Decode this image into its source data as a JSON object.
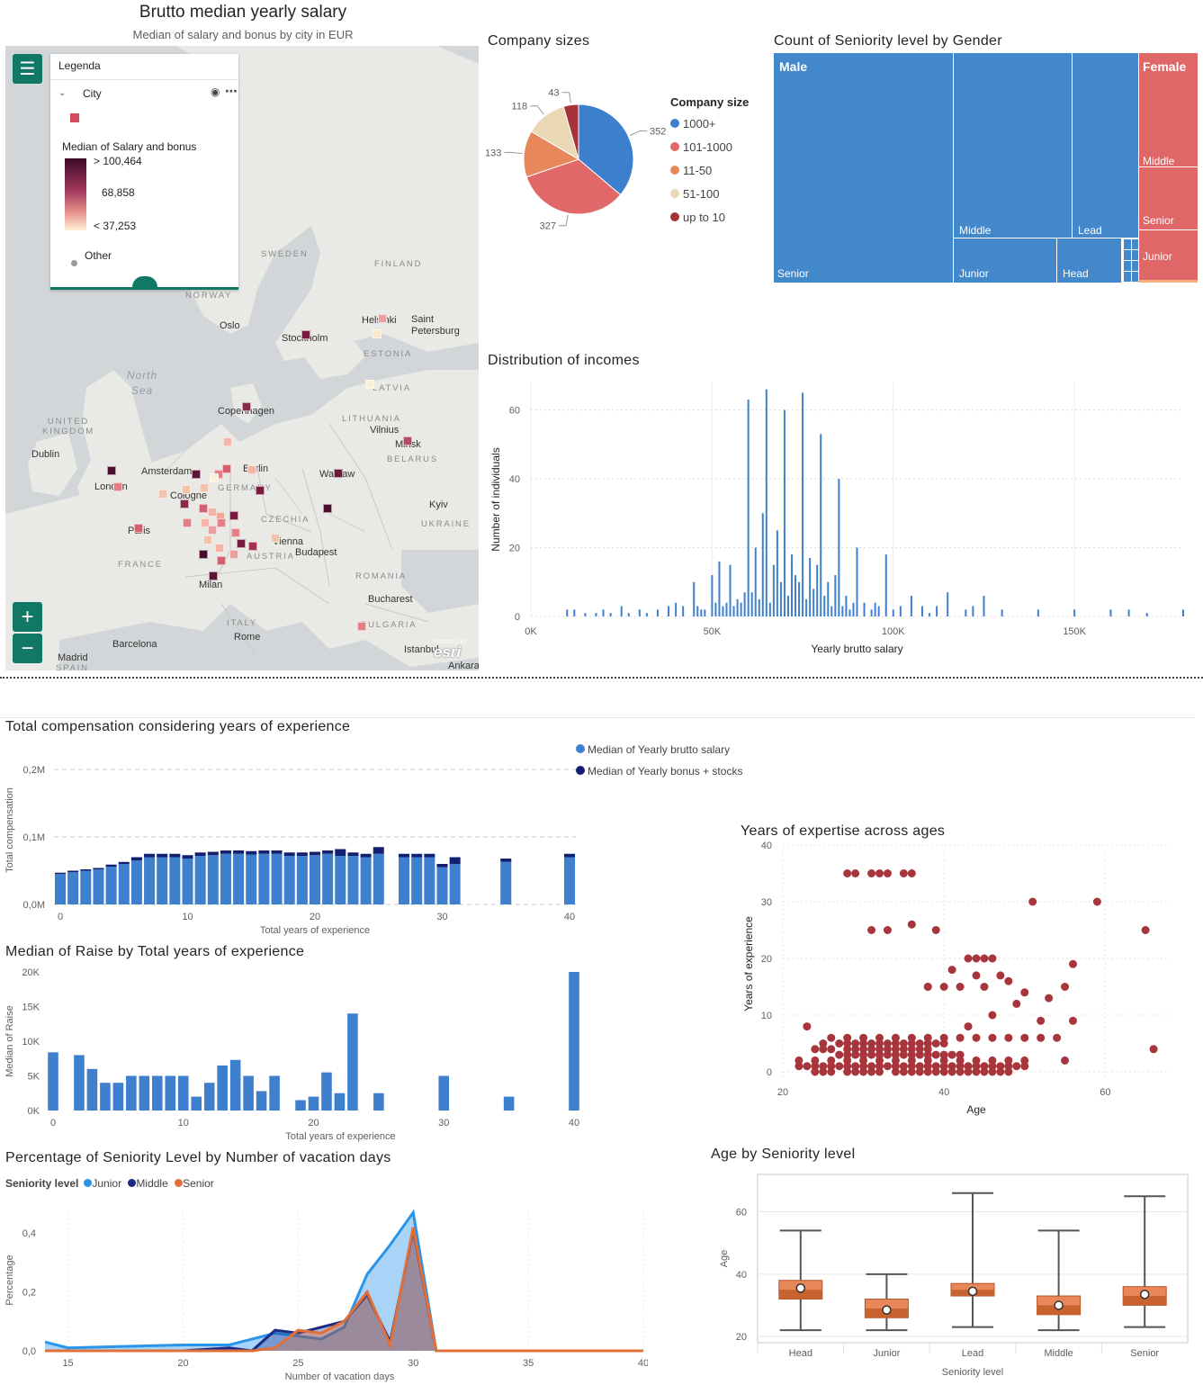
{
  "map_panel": {
    "title": "Brutto median yearly salary",
    "subtitle": "Median of salary and bonus by city in EUR",
    "legend_title": "Legenda",
    "layer_name": "City",
    "measure_label": "Median of Salary and bonus",
    "scale_max": "> 100,464",
    "scale_mid": "68,858",
    "scale_min": "< 37,253",
    "other_label": "Other",
    "attribution": "esri",
    "powered": "POWERED BY",
    "cities": [
      "Oslo",
      "Stockholm",
      "Helsinki",
      "Saint Petersburg",
      "Copenhagen",
      "Vilnius",
      "Minsk",
      "Dublin",
      "Amsterdam",
      "Berlin",
      "Warsaw",
      "London",
      "Cologne",
      "Kyiv",
      "Paris",
      "Vienna",
      "Budapest",
      "Milan",
      "Bucharest",
      "Rome",
      "Barcelona",
      "Madrid",
      "Istanbul",
      "Ankara"
    ],
    "countries": [
      "SWEDEN",
      "FINLAND",
      "NORWAY",
      "ESTONIA",
      "LATVIA",
      "LITHUANIA",
      "BELARUS",
      "UNITED KINGDOM",
      "GERMANY",
      "CZECHIA",
      "UKRAINE",
      "FRANCE",
      "AUSTRIA",
      "ROMANIA",
      "ITALY",
      "BULGARIA",
      "SPAIN"
    ],
    "seas": [
      "North Sea"
    ],
    "colors": {
      "high": "#4a0f2e",
      "mid": "#b9546a",
      "low": "#fbe8c8",
      "accent": "#117865"
    }
  },
  "pie": {
    "title": "Company sizes",
    "legend_title": "Company size",
    "chart_data": {
      "type": "pie",
      "labels": [
        "1000+",
        "101-1000",
        "11-50",
        "51-100",
        "up to 10"
      ],
      "values": [
        352,
        327,
        133,
        118,
        43
      ],
      "colors": [
        "#3c7fcd",
        "#e06868",
        "#e8875a",
        "#ead7b4",
        "#a8323a"
      ]
    }
  },
  "treemap": {
    "title": "Count of Seniority level by Gender",
    "male": "Male",
    "female": "Female",
    "male_cells": [
      "Senior",
      "Middle",
      "Lead",
      "Junior",
      "Head"
    ],
    "female_cells": [
      "Middle",
      "Senior",
      "Junior"
    ]
  },
  "hist": {
    "title": "Distribution of incomes",
    "chart_data": {
      "type": "bar",
      "xlabel": "Yearly brutto salary",
      "ylabel": "Number of individuals",
      "xlim": [
        0,
        180000
      ],
      "ylim": [
        0,
        68
      ],
      "x_ticks": [
        "0K",
        "50K",
        "100K",
        "150K"
      ],
      "y_ticks": [
        "0",
        "20",
        "40",
        "60"
      ],
      "x": [
        10000,
        12000,
        15000,
        18000,
        20000,
        22000,
        25000,
        27000,
        30000,
        32000,
        35000,
        38000,
        40000,
        42000,
        45000,
        46000,
        47000,
        48000,
        50000,
        51000,
        52000,
        53000,
        54000,
        55000,
        56000,
        57000,
        58000,
        59000,
        60000,
        61000,
        62000,
        63000,
        64000,
        65000,
        66000,
        67000,
        68000,
        69000,
        70000,
        71000,
        72000,
        73000,
        74000,
        75000,
        76000,
        77000,
        78000,
        79000,
        80000,
        81000,
        82000,
        83000,
        84000,
        85000,
        86000,
        87000,
        88000,
        89000,
        90000,
        92000,
        94000,
        95000,
        96000,
        98000,
        100000,
        102000,
        105000,
        108000,
        110000,
        112000,
        115000,
        120000,
        122000,
        125000,
        130000,
        140000,
        150000,
        160000,
        165000,
        170000,
        180000
      ],
      "values": [
        2,
        2,
        1,
        1,
        2,
        1,
        3,
        1,
        2,
        1,
        2,
        3,
        4,
        3,
        10,
        3,
        2,
        2,
        12,
        4,
        16,
        3,
        4,
        15,
        3,
        5,
        4,
        7,
        63,
        7,
        20,
        5,
        30,
        66,
        4,
        15,
        25,
        10,
        60,
        6,
        18,
        12,
        10,
        65,
        5,
        17,
        8,
        15,
        53,
        6,
        10,
        3,
        12,
        40,
        3,
        6,
        2,
        4,
        20,
        4,
        2,
        4,
        3,
        18,
        2,
        3,
        6,
        3,
        1,
        3,
        7,
        2,
        3,
        6,
        2,
        2,
        2,
        2,
        2,
        1,
        2
      ]
    }
  },
  "comp": {
    "title": "Total compensation considering years of experience",
    "chart_data": {
      "type": "bar",
      "stacked": true,
      "xlabel": "Total years of experience",
      "ylabel": "Total compensation",
      "ylim": [
        0,
        220000
      ],
      "x_ticks": [
        "0",
        "10",
        "20",
        "30",
        "40"
      ],
      "y_ticks": [
        "0,0M",
        "0,1M",
        "0,2M"
      ],
      "x": [
        0,
        1,
        2,
        3,
        4,
        5,
        6,
        7,
        8,
        9,
        10,
        11,
        12,
        13,
        14,
        15,
        16,
        17,
        18,
        19,
        20,
        21,
        22,
        23,
        24,
        25,
        27,
        28,
        29,
        30,
        31,
        35,
        40
      ],
      "series": [
        {
          "name": "Median of Yearly brutto salary",
          "color": "#3e7fce",
          "values": [
            45000,
            48000,
            50000,
            52000,
            56000,
            60000,
            65000,
            70000,
            70000,
            70000,
            68000,
            72000,
            73000,
            75000,
            75000,
            74000,
            75000,
            75000,
            72000,
            72000,
            73000,
            75000,
            72000,
            72000,
            70000,
            75000,
            70000,
            70000,
            70000,
            55000,
            60000,
            63000,
            70000
          ]
        },
        {
          "name": "Median of Yearly bonus + stocks",
          "color": "#13206f",
          "values": [
            2000,
            2000,
            2000,
            2000,
            3000,
            3000,
            5000,
            5000,
            5000,
            5000,
            5000,
            5000,
            5000,
            5000,
            5000,
            5000,
            5000,
            5000,
            5000,
            5000,
            5000,
            5000,
            10000,
            5000,
            5000,
            10000,
            5000,
            5000,
            5000,
            5000,
            10000,
            5000,
            5000
          ]
        }
      ]
    }
  },
  "raise": {
    "title": "Median of Raise by Total years of experience",
    "chart_data": {
      "type": "bar",
      "xlabel": "Total years of experience",
      "ylabel": "Median of Raise",
      "ylim": [
        0,
        20000
      ],
      "x_ticks": [
        "0",
        "10",
        "20",
        "30",
        "40"
      ],
      "y_ticks": [
        "0K",
        "5K",
        "10K",
        "15K",
        "20K"
      ],
      "x": [
        0,
        2,
        3,
        4,
        5,
        6,
        7,
        8,
        9,
        10,
        11,
        12,
        13,
        14,
        15,
        16,
        17,
        19,
        20,
        21,
        22,
        23,
        25,
        30,
        35,
        40
      ],
      "values": [
        8400,
        8000,
        6000,
        4000,
        4000,
        5000,
        5000,
        5000,
        5000,
        5000,
        2000,
        4000,
        6500,
        7300,
        5000,
        2800,
        5000,
        1500,
        2000,
        5500,
        2500,
        14000,
        2500,
        5000,
        2000,
        20000
      ]
    }
  },
  "vacation": {
    "title": "Percentage of Seniority Level by Number of vacation days",
    "legend_title": "Seniority level",
    "chart_data": {
      "type": "area",
      "xlabel": "Number of vacation days",
      "ylabel": "Percentage",
      "xlim": [
        14,
        40
      ],
      "ylim": [
        0,
        0.48
      ],
      "x_ticks": [
        "15",
        "20",
        "25",
        "30",
        "35",
        "40"
      ],
      "y_ticks": [
        "0,0",
        "0,2",
        "0,4"
      ],
      "x": [
        14,
        15,
        20,
        22,
        23,
        24,
        25,
        26,
        27,
        28,
        29,
        30,
        31,
        32,
        40
      ],
      "series": [
        {
          "name": "Junior",
          "color": "#2894ea",
          "values": [
            0.03,
            0.01,
            0.02,
            0.02,
            0.04,
            0.06,
            0.05,
            0.04,
            0.08,
            0.26,
            0.36,
            0.47,
            0.0,
            0.0,
            0.0
          ]
        },
        {
          "name": "Middle",
          "color": "#1b2a85",
          "values": [
            0.0,
            0.0,
            0.0,
            0.01,
            0.0,
            0.07,
            0.06,
            0.08,
            0.1,
            0.19,
            0.03,
            0.41,
            0.0,
            0.0,
            0.0
          ]
        },
        {
          "name": "Senior",
          "color": "#e0703a",
          "values": [
            0.0,
            0.0,
            0.0,
            0.0,
            0.0,
            0.01,
            0.07,
            0.06,
            0.1,
            0.2,
            0.02,
            0.42,
            0.0,
            0.0,
            0.0
          ]
        }
      ]
    }
  },
  "scatter": {
    "title": "Years of expertise across ages",
    "chart_data": {
      "type": "scatter",
      "xlabel": "Age",
      "ylabel": "Years of experience",
      "xlim": [
        20,
        68
      ],
      "ylim": [
        0,
        40
      ],
      "x_ticks": [
        "20",
        "40",
        "60"
      ],
      "y_ticks": [
        "0",
        "10",
        "20",
        "30",
        "40"
      ],
      "color": "#a8343c",
      "x": [
        24,
        25,
        26,
        28,
        29,
        30,
        31,
        32,
        34,
        35,
        36,
        37,
        38,
        39,
        40,
        41,
        42,
        43,
        44,
        45,
        46,
        47,
        48,
        22,
        23,
        24,
        25,
        26,
        27,
        28,
        29,
        30,
        31,
        32,
        33,
        34,
        35,
        36,
        37,
        38,
        39,
        40,
        41,
        42,
        43,
        44,
        45,
        46,
        47,
        48,
        49,
        50,
        22,
        24,
        26,
        28,
        30,
        32,
        34,
        36,
        38,
        40,
        42,
        44,
        46,
        48,
        50,
        27,
        28,
        29,
        30,
        31,
        32,
        33,
        34,
        35,
        36,
        37,
        38,
        39,
        40,
        41,
        42,
        24,
        25,
        26,
        28,
        29,
        30,
        31,
        32,
        33,
        34,
        35,
        36,
        37,
        38,
        25,
        27,
        28,
        29,
        30,
        31,
        32,
        33,
        34,
        35,
        36,
        37,
        38,
        39,
        40,
        26,
        28,
        30,
        32,
        34,
        36,
        38,
        40,
        42,
        44,
        46,
        48,
        50,
        52,
        54,
        28,
        29,
        31,
        32,
        35,
        36,
        33,
        38,
        40,
        42,
        43,
        44,
        45,
        46,
        47,
        48,
        49,
        50,
        51,
        52,
        53,
        55,
        56,
        59,
        65,
        66,
        23,
        31,
        39,
        33,
        36,
        38,
        41,
        44,
        45,
        46,
        55,
        56,
        43
      ],
      "y": [
        0,
        0,
        0,
        0,
        0,
        0,
        0,
        0,
        0,
        0,
        0,
        0,
        0,
        0,
        0,
        0,
        0,
        0,
        0,
        0,
        0,
        0,
        0,
        1,
        1,
        1,
        1,
        1,
        1,
        1,
        1,
        1,
        1,
        1,
        1,
        1,
        1,
        1,
        1,
        1,
        1,
        1,
        1,
        1,
        1,
        1,
        1,
        1,
        1,
        1,
        1,
        1,
        2,
        2,
        2,
        2,
        2,
        2,
        2,
        2,
        2,
        2,
        2,
        2,
        2,
        2,
        2,
        3,
        3,
        3,
        3,
        3,
        3,
        3,
        3,
        3,
        3,
        3,
        3,
        3,
        3,
        3,
        3,
        4,
        4,
        4,
        4,
        4,
        4,
        4,
        4,
        4,
        4,
        4,
        4,
        4,
        4,
        5,
        5,
        5,
        5,
        5,
        5,
        5,
        5,
        5,
        5,
        5,
        5,
        5,
        5,
        5,
        6,
        6,
        6,
        6,
        6,
        6,
        6,
        6,
        6,
        6,
        6,
        6,
        6,
        6,
        6,
        35,
        35,
        35,
        35,
        35,
        35,
        35,
        15,
        15,
        15,
        20,
        20,
        20,
        20,
        17,
        16,
        12,
        14,
        30,
        9,
        13,
        2,
        19,
        30,
        25,
        4,
        8,
        25,
        25,
        25,
        26,
        15,
        18,
        17,
        15,
        10,
        15,
        9,
        8
      ]
    }
  },
  "boxplot": {
    "title": "Age by Seniority level",
    "chart_data": {
      "type": "box",
      "xlabel": "Seniority level",
      "ylabel": "Age",
      "ylim": [
        18,
        72
      ],
      "y_ticks": [
        "20",
        "40",
        "60"
      ],
      "categories": [
        "Head",
        "Junior",
        "Lead",
        "Middle",
        "Senior"
      ],
      "min": [
        22,
        22,
        23,
        22,
        23
      ],
      "q1": [
        32,
        26,
        33,
        27,
        30
      ],
      "median": [
        35,
        29,
        35,
        30,
        33
      ],
      "q3": [
        38,
        32,
        37,
        33,
        36
      ],
      "max": [
        54,
        40,
        66,
        54,
        65
      ],
      "mean": [
        35.5,
        28.5,
        34.5,
        30,
        33.5
      ]
    }
  }
}
